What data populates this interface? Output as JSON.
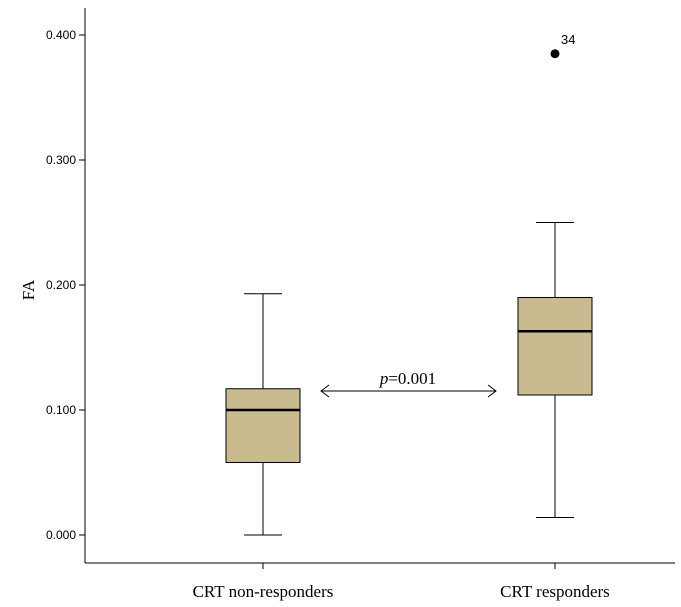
{
  "chart_data": {
    "type": "box",
    "ylabel": "FA",
    "ylim": [
      -0.02,
      0.42
    ],
    "yticks": [
      "0.000",
      "0.100",
      "0.200",
      "0.300",
      "0.400"
    ],
    "ytick_values": [
      0.0,
      0.1,
      0.2,
      0.3,
      0.4
    ],
    "categories": [
      "CRT non-responders",
      "CRT responders"
    ],
    "boxes": [
      {
        "category": "CRT non-responders",
        "min": 0.0,
        "q1": 0.058,
        "median": 0.1,
        "q3": 0.117,
        "max": 0.193,
        "outliers": []
      },
      {
        "category": "CRT responders",
        "min": 0.014,
        "q1": 0.112,
        "median": 0.163,
        "q3": 0.19,
        "max": 0.25,
        "outliers": [
          {
            "value": 0.385,
            "label": "34"
          }
        ]
      }
    ],
    "annotation": {
      "italic": "p",
      "rest": "=0.001"
    },
    "box_color": "#c9bb8f",
    "line_color": "#000000"
  }
}
